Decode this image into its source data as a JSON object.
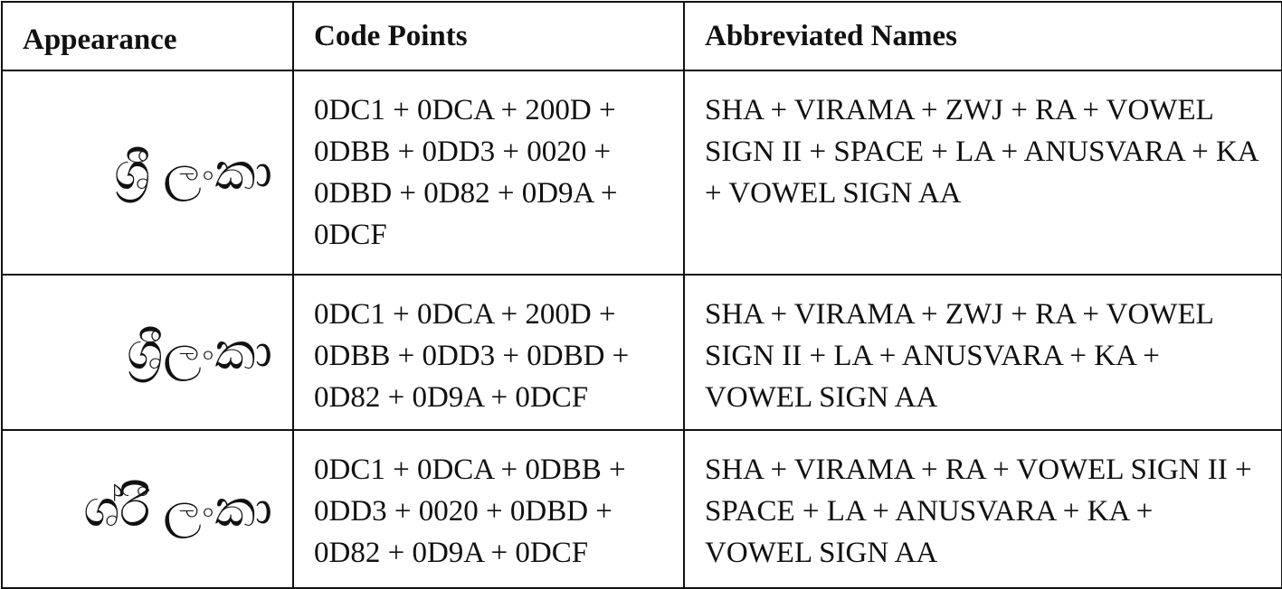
{
  "table": {
    "header": [
      "Appearance",
      "Code Points",
      "Abbreviated Names"
    ],
    "rows": [
      [
        "ශ්‍රී ලංකා",
        "0DC1 + 0DCA + 200D + 0DBB + 0DD3 + 0020 + 0DBD + 0D82 + 0D9A + 0DCF",
        "SHA + VIRAMA + ZWJ + RA + VOWEL SIGN II + SPACE + LA + ANUSVARA + KA + VOWEL SIGN AA"
      ],
      [
        "ශ්‍රීලංකා",
        "0DC1 + 0DCA + 200D + 0DBB + 0DD3 + 0DBD + 0D82 + 0D9A + 0DCF",
        "SHA + VIRAMA + ZWJ + RA + VOWEL SIGN II + LA + ANUSVARA + KA + VOWEL SIGN AA"
      ],
      [
        "ශ්රී ලංකා",
        "0DC1 + 0DCA + 0DBB + 0DD3 + 0020 + 0DBD + 0D82 + 0D9A + 0DCF",
        "SHA + VIRAMA + RA + VOWEL SIGN II + SPACE + LA + ANUSVARA + KA + VOWEL SIGN AA"
      ]
    ]
  }
}
